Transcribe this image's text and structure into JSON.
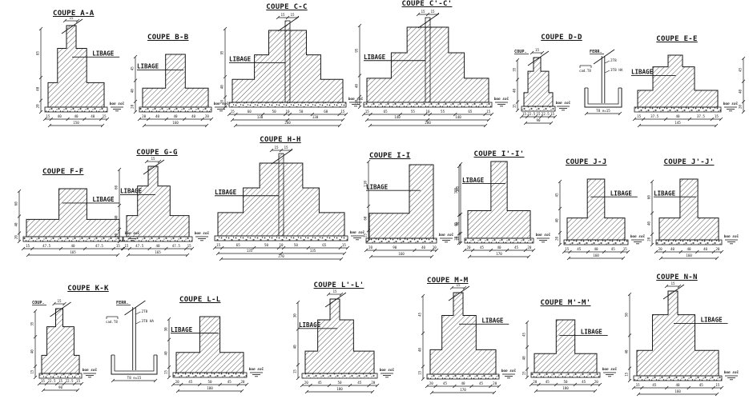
{
  "drawing": {
    "background": "#ffffff",
    "ink": "#161616",
    "hatch_color": "#2a2a2a"
  },
  "sections": [
    {
      "id": "aa",
      "title": "COUPE A-A",
      "libage": {
        "label": "LIBAGE",
        "side": "right"
      },
      "ground_label": "bon sol",
      "top_dim": "15",
      "bottom_dims": {
        "segments": [
          "15",
          "40",
          "40",
          "40",
          "15"
        ],
        "total": "150"
      },
      "side_dims": [
        "20",
        "40",
        "85"
      ]
    },
    {
      "id": "bb",
      "title": "COUPE B-B",
      "libage": {
        "label": "LIBAGE",
        "side": "left"
      },
      "ground_label": "bon sol",
      "bottom_dims": {
        "segments": [
          "20",
          "40",
          "40",
          "40",
          "20"
        ],
        "total": "160"
      },
      "side_dims": [
        "20",
        "40",
        "45"
      ]
    },
    {
      "id": "cc",
      "title": "COUPE C-C",
      "libage": {
        "label": "LIBAGE",
        "side": "left"
      },
      "ground_label": "bon sol",
      "top_dims": [
        "15",
        "15"
      ],
      "bottom_dims": {
        "segments": [
          "15",
          "60",
          "50",
          "10",
          "50",
          "60",
          "15"
        ],
        "mids": [
          "130",
          "130"
        ],
        "total": "260"
      },
      "side_dims": [
        "20",
        "40",
        "95"
      ]
    },
    {
      "id": "ccp",
      "title": "COUPE C'-C'",
      "libage": {
        "label": "LIBAGE",
        "side": "left"
      },
      "ground_label": "bon sol",
      "top_dims": [
        "15",
        "15"
      ],
      "bottom_dims": {
        "segments": [
          "15",
          "65",
          "55",
          "10",
          "55",
          "65",
          "15"
        ],
        "mids": [
          "140",
          "140"
        ],
        "total": "280"
      },
      "side_dims": [
        "20",
        "40",
        "95"
      ]
    },
    {
      "id": "dd",
      "title": "COUPE D-D",
      "coupe_label": "COUP.",
      "ferraillage_label": "FERR.",
      "ground_label": "bon sol",
      "top_dim": "15",
      "bottom_dims": {
        "segments": [
          "15",
          "22.5",
          "15",
          "22.5",
          "15"
        ],
        "total": "90"
      },
      "side_dims": [
        "15",
        "40",
        "35"
      ],
      "rebar": {
        "vertical_bars": "2T8",
        "base_bars": "3T8 HA",
        "stirrup": "cad.T8",
        "spacing": "T8 e=15"
      }
    },
    {
      "id": "ee",
      "title": "COUPE E-E",
      "libage": {
        "label": "LIBAGE",
        "side": "left"
      },
      "ground_label": "bon sol",
      "bottom_dims": {
        "segments": [
          "15",
          "37.5",
          "40",
          "37.5",
          "15"
        ],
        "total": "145"
      },
      "side_dims": [
        "20",
        "40",
        "45"
      ]
    },
    {
      "id": "ff",
      "title": "COUPE F-F",
      "libage": {
        "label": "LIBAGE",
        "side": "right"
      },
      "ground_label": "bon sol",
      "bottom_dims": {
        "segments": [
          "15",
          "47.5",
          "40",
          "47.5",
          "15"
        ],
        "total": "165"
      },
      "side_dims": [
        "20",
        "40",
        "60"
      ]
    },
    {
      "id": "gg",
      "title": "COUPE G-G",
      "libage": {
        "label": "LIBAGE",
        "side": "left"
      },
      "ground_label": "bon sol",
      "top_dim": "15",
      "bottom_dims": {
        "segments": [
          "15",
          "47.5",
          "40",
          "47.5",
          "15"
        ],
        "total": "165"
      },
      "side_dims": [
        "20",
        "40",
        "60"
      ]
    },
    {
      "id": "hh",
      "title": "COUPE H-H",
      "libage": {
        "label": "LIBAGE",
        "side": "left"
      },
      "ground_label": "bon sol",
      "top_dims": [
        "15",
        "15"
      ],
      "bottom_dims": {
        "segments": [
          "15",
          "65",
          "50",
          "10",
          "50",
          "65",
          "15"
        ],
        "mids": [
          "135",
          "135"
        ],
        "total": "270"
      },
      "side_dims": [
        "25",
        "60",
        "110"
      ]
    },
    {
      "id": "ii",
      "title": "COUPE I-I",
      "libage": {
        "label": "LIBAGE",
        "side": "left"
      },
      "ground_label": "bon sol",
      "bottom_dims": {
        "segments": [
          "20",
          "90",
          "40",
          "10"
        ],
        "total": "160"
      },
      "side_dims": [
        "20",
        "40",
        "105"
      ]
    },
    {
      "id": "iip",
      "title": "COUPE I'-I'",
      "libage": {
        "label": "LIBAGE",
        "side": "left"
      },
      "ground_label": "bon sol",
      "bottom_dims": {
        "segments": [
          "20",
          "45",
          "40",
          "45",
          "20"
        ],
        "total": "170"
      },
      "side_dims": [
        "20",
        "40",
        "105"
      ]
    },
    {
      "id": "jj",
      "title": "COUPE J-J",
      "libage": {
        "label": "LIBAGE",
        "side": "right"
      },
      "ground_label": "bon sol",
      "bottom_dims": {
        "segments": [
          "15",
          "45",
          "40",
          "45",
          "15"
        ],
        "total": "160"
      },
      "side_dims": [
        "20",
        "40",
        "45"
      ]
    },
    {
      "id": "jjp",
      "title": "COUPE J'-J'",
      "libage": {
        "label": "LIBAGE",
        "side": "left"
      },
      "ground_label": "bon sol",
      "bottom_dims": {
        "segments": [
          "20",
          "40",
          "40",
          "40",
          "20"
        ],
        "total": "160"
      },
      "side_dims": [
        "20",
        "40",
        "60"
      ]
    },
    {
      "id": "kk",
      "title": "COUPE K-K",
      "coupe_label": "COUP.",
      "ferraillage_label": "FERR.",
      "ground_label": "bon sol",
      "top_dim": "15",
      "bottom_dims": {
        "segments": [
          "15",
          "22.5",
          "15",
          "22.5",
          "15"
        ],
        "total": "90"
      },
      "side_dims": [
        "15",
        "40",
        "35"
      ],
      "rebar": {
        "vertical_bars": "2T8",
        "base_bars": "3T8 HA",
        "stirrup": "cad.T8",
        "spacing": "T8 e=15"
      }
    },
    {
      "id": "ll",
      "title": "COUPE L-L",
      "libage": {
        "label": "LIBAGE",
        "side": "left"
      },
      "ground_label": "bon sol",
      "bottom_dims": {
        "segments": [
          "20",
          "45",
          "50",
          "45",
          "20"
        ],
        "total": "180"
      },
      "side_dims": [
        "15",
        "40",
        "30"
      ]
    },
    {
      "id": "llp",
      "title": "COUPE L'-L'",
      "libage": {
        "label": "LIBAGE",
        "side": "left"
      },
      "ground_label": "bon sol",
      "top_dim": "15",
      "bottom_dims": {
        "segments": [
          "20",
          "45",
          "50",
          "45",
          "20"
        ],
        "total": "180"
      },
      "side_dims": [
        "15",
        "40",
        "30"
      ]
    },
    {
      "id": "mm",
      "title": "COUPE M-M",
      "libage": {
        "label": "LIBAGE",
        "side": "right"
      },
      "ground_label": "bon sol",
      "top_dim": "15",
      "bottom_dims": {
        "segments": [
          "20",
          "45",
          "40",
          "45",
          "20"
        ],
        "total": "170"
      },
      "side_dims": [
        "15",
        "40",
        "45"
      ]
    },
    {
      "id": "mmp",
      "title": "COUPE M'-M'",
      "libage": {
        "label": "LIBAGE",
        "side": "right"
      },
      "ground_label": "bon sol",
      "bottom_dims": {
        "segments": [
          "20",
          "45",
          "50",
          "45",
          "20"
        ],
        "total": "180"
      },
      "side_dims": [
        "15",
        "40",
        "45"
      ]
    },
    {
      "id": "nn",
      "title": "COUPE N-N",
      "libage": {
        "label": "LIBAGE",
        "side": "right"
      },
      "ground_label": "bon sol",
      "top_dim": "15",
      "bottom_dims": {
        "segments": [
          "15",
          "45",
          "40",
          "45",
          "15"
        ],
        "total": "160"
      },
      "side_dims": [
        "15",
        "40",
        "50"
      ]
    }
  ]
}
